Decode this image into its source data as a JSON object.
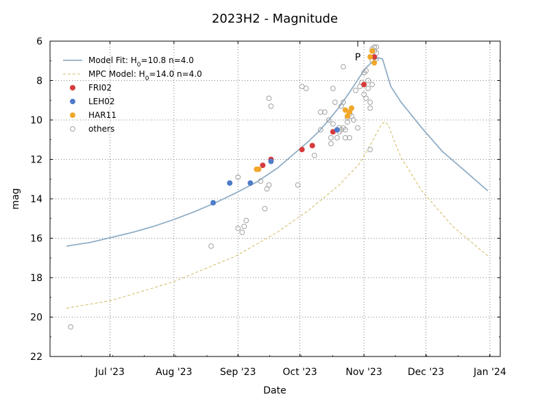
{
  "chart_data": {
    "type": "scatter",
    "title": "2023H2 - Magnitude",
    "xlabel": "Date",
    "ylabel": "mag",
    "xlim": [
      0,
      218
    ],
    "ylim": [
      22,
      6
    ],
    "y_inverted": true,
    "grid": true,
    "x_ticks": [
      {
        "x": 29,
        "label": "Jul '23"
      },
      {
        "x": 60,
        "label": "Aug '23"
      },
      {
        "x": 91,
        "label": "Sep '23"
      },
      {
        "x": 121,
        "label": "Oct '23"
      },
      {
        "x": 152,
        "label": "Nov '23"
      },
      {
        "x": 182,
        "label": "Dec '23"
      },
      {
        "x": 213,
        "label": "Jan '24"
      }
    ],
    "y_ticks": [
      6,
      8,
      10,
      12,
      14,
      16,
      18,
      20,
      22
    ],
    "perihelion_marker": {
      "x": 149,
      "label": "P"
    },
    "legend": {
      "position": "top-left",
      "entries": [
        {
          "label_main": "Model Fit: H",
          "label_sub": "0",
          "label_rest": "=10.8 n=4.0",
          "kind": "line",
          "color": "#8fadc6"
        },
        {
          "label_main": "MPC Model: H",
          "label_sub": "0",
          "label_rest": "=14.0 n=4.0",
          "kind": "dashed",
          "color": "#d4be6a"
        },
        {
          "label_main": "FRI02",
          "label_sub": "",
          "label_rest": "",
          "kind": "dot",
          "color": "#d63b3b"
        },
        {
          "label_main": "LEH02",
          "label_sub": "",
          "label_rest": "",
          "kind": "dot",
          "color": "#4f7cc9"
        },
        {
          "label_main": "HAR11",
          "label_sub": "",
          "label_rest": "",
          "kind": "dot",
          "color": "#f0a72a"
        },
        {
          "label_main": "others",
          "label_sub": "",
          "label_rest": "",
          "kind": "circle",
          "color": "#a0a0a0"
        }
      ]
    },
    "series": [
      {
        "name": "Model Fit: H0=10.8 n=4.0",
        "kind": "line",
        "color": "#8fadc6",
        "x": [
          8,
          20,
          30,
          40,
          50,
          60,
          70,
          80,
          90,
          100,
          110,
          120,
          125,
          130,
          135,
          140,
          145,
          150,
          153,
          155,
          157,
          159,
          161,
          163,
          165,
          170,
          180,
          190,
          200,
          212
        ],
        "y": [
          16.4,
          16.2,
          15.95,
          15.7,
          15.4,
          15.05,
          14.65,
          14.2,
          13.7,
          13.15,
          12.45,
          11.55,
          11.1,
          10.6,
          10.0,
          9.35,
          8.6,
          7.8,
          7.35,
          7.15,
          6.95,
          6.85,
          6.9,
          7.6,
          8.3,
          9.1,
          10.4,
          11.6,
          12.5,
          13.6
        ]
      },
      {
        "name": "MPC Model: H0=14.0 n=4.0",
        "kind": "dashed",
        "color": "#d4be6a",
        "x": [
          8,
          30,
          60,
          90,
          110,
          125,
          140,
          150,
          156,
          160,
          162,
          164,
          166,
          170,
          180,
          195,
          212
        ],
        "y": [
          19.55,
          19.15,
          18.2,
          16.9,
          15.7,
          14.6,
          13.3,
          12.2,
          11.1,
          10.3,
          10.08,
          10.3,
          10.9,
          11.9,
          13.6,
          15.4,
          16.9
        ]
      },
      {
        "name": "FRI02",
        "kind": "dot",
        "color": "#d63b3b",
        "x": [
          103,
          107,
          122,
          127,
          137,
          152,
          157
        ],
        "y": [
          12.3,
          12.0,
          11.5,
          11.3,
          10.6,
          8.2,
          6.8
        ]
      },
      {
        "name": "LEH02",
        "kind": "dot",
        "color": "#4f7cc9",
        "x": [
          79,
          87,
          97,
          107,
          139
        ],
        "y": [
          14.2,
          13.2,
          13.2,
          12.1,
          10.5
        ]
      },
      {
        "name": "HAR11",
        "kind": "dot",
        "color": "#f0a72a",
        "x": [
          100,
          101,
          143,
          144,
          145,
          146,
          156,
          157,
          155
        ],
        "y": [
          12.5,
          12.5,
          9.5,
          9.8,
          9.6,
          9.4,
          6.5,
          7.1,
          6.8
        ]
      },
      {
        "name": "others",
        "kind": "circle",
        "color": "#a0a0a0",
        "x": [
          10,
          78,
          91,
          91,
          93,
          94,
          95,
          102,
          104,
          105,
          106,
          106,
          107,
          120,
          122,
          124,
          128,
          131,
          131,
          133,
          135,
          136,
          136,
          137,
          137,
          138,
          139,
          140,
          140,
          141,
          141,
          142,
          142,
          142,
          143,
          143,
          144,
          144,
          145,
          145,
          146,
          146,
          147,
          148,
          149,
          150,
          151,
          152,
          152,
          153,
          153,
          154,
          154,
          155,
          155,
          155,
          156,
          156,
          156,
          157,
          157,
          158,
          158,
          158
        ],
        "y": [
          20.5,
          16.4,
          12.9,
          15.5,
          15.7,
          15.4,
          15.1,
          13.1,
          14.5,
          13.5,
          13.3,
          8.9,
          9.3,
          13.3,
          8.3,
          8.4,
          11.8,
          10.5,
          9.6,
          9.6,
          10.0,
          10.9,
          11.2,
          10.2,
          8.4,
          9.1,
          10.9,
          10.6,
          10.4,
          10.5,
          9.3,
          10.4,
          9.1,
          7.3,
          10.5,
          10.9,
          9.9,
          10.1,
          9.7,
          10.9,
          9.4,
          9.8,
          10.0,
          8.5,
          10.4,
          8.3,
          8.1,
          8.7,
          7.6,
          7.5,
          8.9,
          8.0,
          8.4,
          9.1,
          9.4,
          11.5,
          6.4,
          7.0,
          8.2,
          6.3,
          6.5,
          6.6,
          6.9,
          6.3
        ]
      }
    ]
  }
}
